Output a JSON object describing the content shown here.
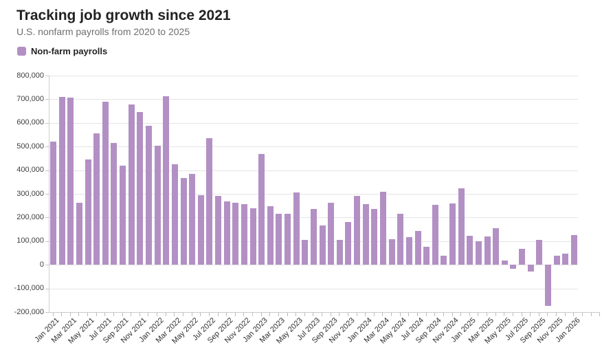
{
  "chart_data": {
    "type": "bar",
    "title": "Tracking job growth since 2021",
    "subtitle": "U.S. nonfarm payrolls from 2020 to 2025",
    "legend_label": "Non-farm payrolls",
    "series_name": "Non-farm payrolls",
    "legend_position": "top-left",
    "grid": "horizontal",
    "bar_color": "#b290c4",
    "ylim": [
      -200000,
      800000
    ],
    "y_ticks": [
      800000,
      700000,
      600000,
      500000,
      400000,
      300000,
      200000,
      100000,
      0,
      -100000,
      -200000
    ],
    "y_tick_labels": [
      "800,000",
      "700,000",
      "600,000",
      "500,000",
      "400,000",
      "300,000",
      "200,000",
      "100,000",
      "0",
      "-100,000",
      "-200,000"
    ],
    "x_tick_step": 2,
    "x": [
      "Jan 2021",
      "Feb 2021",
      "Mar 2021",
      "Apr 2021",
      "May 2021",
      "Jun 2021",
      "Jul 2021",
      "Aug 2021",
      "Sep 2021",
      "Oct 2021",
      "Nov 2021",
      "Dec 2021",
      "Jan 2022",
      "Feb 2022",
      "Mar 2022",
      "Apr 2022",
      "May 2022",
      "Jun 2022",
      "Jul 2022",
      "Aug 2022",
      "Sep 2022",
      "Oct 2022",
      "Nov 2022",
      "Dec 2022",
      "Jan 2023",
      "Feb 2023",
      "Mar 2023",
      "Apr 2023",
      "May 2023",
      "Jun 2023",
      "Jul 2023",
      "Aug 2023",
      "Sep 2023",
      "Oct 2023",
      "Nov 2023",
      "Dec 2023",
      "Jan 2024",
      "Feb 2024",
      "Mar 2024",
      "Apr 2024",
      "May 2024",
      "Jun 2024",
      "Jul 2024",
      "Aug 2024",
      "Sep 2024",
      "Oct 2024",
      "Nov 2024",
      "Dec 2024",
      "Jan 2025",
      "Feb 2025",
      "Mar 2025",
      "Apr 2025",
      "May 2025",
      "Jun 2025",
      "Jul 2025",
      "Aug 2025",
      "Sep 2025",
      "Oct 2025",
      "Nov 2025",
      "Dec 2025",
      "Jan 2026"
    ],
    "values": [
      520000,
      711000,
      706000,
      262000,
      446000,
      557000,
      689000,
      516000,
      420000,
      678000,
      647000,
      587000,
      503000,
      714000,
      426000,
      366000,
      384000,
      293000,
      537000,
      290000,
      269000,
      262000,
      257000,
      239000,
      470000,
      248000,
      217000,
      217000,
      306000,
      105000,
      236000,
      165000,
      262000,
      105000,
      182000,
      290000,
      256000,
      236000,
      310000,
      107000,
      215000,
      118000,
      143000,
      76000,
      255000,
      39000,
      258000,
      322000,
      124000,
      100000,
      119000,
      156000,
      17000,
      -16000,
      68000,
      -28000,
      106000,
      -174000,
      38000,
      46000,
      125000
    ]
  }
}
